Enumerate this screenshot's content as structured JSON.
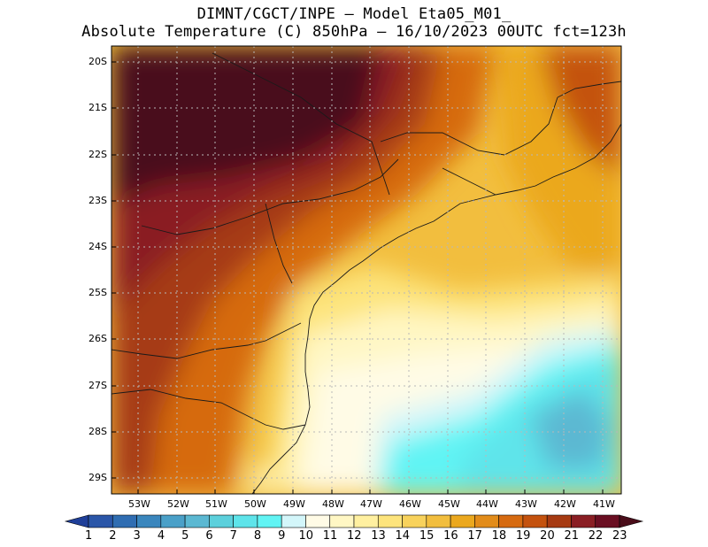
{
  "title_line1": "DIMNT/CGCT/INPE –  Model Eta05_M01_",
  "title_line2": "Absolute Temperature (C) 850hPa –  16/10/2023 00UTC fct=123h",
  "lat_labels": [
    "20S",
    "21S",
    "22S",
    "23S",
    "24S",
    "25S",
    "26S",
    "27S",
    "28S",
    "29S"
  ],
  "lon_labels": [
    "53W",
    "52W",
    "51W",
    "50W",
    "49W",
    "48W",
    "47W",
    "46W",
    "45W",
    "44W",
    "43W",
    "42W",
    "41W"
  ],
  "colorbar": {
    "labels": [
      "1",
      "2",
      "3",
      "4",
      "5",
      "6",
      "7",
      "8",
      "9",
      "10",
      "11",
      "12",
      "13",
      "14",
      "15",
      "16",
      "17",
      "18",
      "19",
      "20",
      "21",
      "22",
      "23"
    ],
    "colors": [
      "#1f3f99",
      "#2a56a8",
      "#2f6db2",
      "#3a86bd",
      "#4aa0c8",
      "#5bb8d2",
      "#5cd0dc",
      "#5ee4ea",
      "#61f4f4",
      "#d3f6fa",
      "#fffbe6",
      "#fff7c4",
      "#fff0a0",
      "#fde47c",
      "#f8d25c",
      "#f2be3e",
      "#eba81e",
      "#e28c1a",
      "#d66a10",
      "#c4520e",
      "#a63a12",
      "#8a1e24",
      "#6a0e22",
      "#4a0d1a"
    ]
  }
}
